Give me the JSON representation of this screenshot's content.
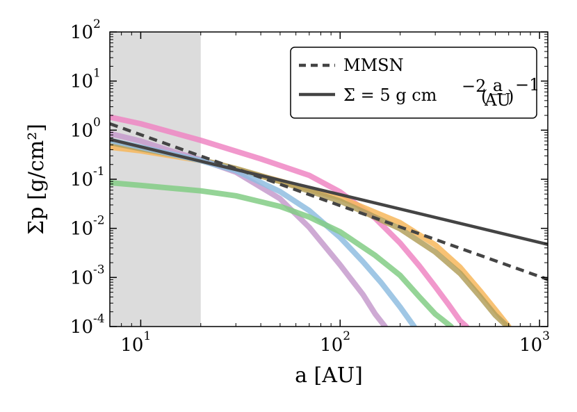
{
  "chart_data": {
    "type": "line",
    "title": "",
    "xlabel": "a [AU]",
    "ylabel": "Σp [g/cm²]",
    "xscale": "log",
    "yscale": "log",
    "xlim": [
      7,
      1100
    ],
    "ylim": [
      0.0001,
      100
    ],
    "x_ticks": [
      {
        "base": "10",
        "exp": "1",
        "value": 10
      },
      {
        "base": "10",
        "exp": "2",
        "value": 100
      },
      {
        "base": "10",
        "exp": "3",
        "value": 1000
      }
    ],
    "y_ticks": [
      {
        "base": "10",
        "exp": "-4",
        "value": 0.0001
      },
      {
        "base": "10",
        "exp": "-3",
        "value": 0.001
      },
      {
        "base": "10",
        "exp": "-2",
        "value": 0.01
      },
      {
        "base": "10",
        "exp": "-1",
        "value": 0.1
      },
      {
        "base": "10",
        "exp": "0",
        "value": 1
      },
      {
        "base": "10",
        "exp": "1",
        "value": 10
      },
      {
        "base": "10",
        "exp": "2",
        "value": 100
      }
    ],
    "shaded_region": {
      "x": [
        7,
        20
      ],
      "color": "#dcdcdc"
    },
    "legend": {
      "position": "top-right",
      "entries": [
        {
          "label": "MMSN",
          "style": "dashed",
          "color": "#444444"
        },
        {
          "label": "Σ = 5 g cm⁻² (a/AU)⁻¹",
          "style": "solid",
          "color": "#444444"
        }
      ]
    },
    "legend_parts": {
      "sigma_eq": "Σ = 5  g  cm",
      "exp_neg2": "−2",
      "frac_num": "a",
      "frac_den": "AU",
      "exp_neg1": "−1"
    },
    "series": [
      {
        "name": "MMSN",
        "style": "dashed",
        "color": "#444444",
        "x": [
          7,
          1100
        ],
        "y": [
          1.35,
          0.00091
        ]
      },
      {
        "name": "Σ = 5 g cm⁻² (a/AU)⁻¹",
        "style": "solid",
        "color": "#444444",
        "x": [
          7,
          1100
        ],
        "y": [
          0.65,
          0.0047
        ]
      },
      {
        "name": "pink",
        "style": "disk",
        "color": "#ef86c3",
        "x": [
          7,
          10,
          20,
          40,
          70,
          100,
          150,
          200,
          250,
          300,
          350,
          400,
          430
        ],
        "y": [
          1.85,
          1.35,
          0.62,
          0.26,
          0.12,
          0.055,
          0.016,
          0.005,
          0.0017,
          0.00065,
          0.00028,
          0.00013,
          0.0001
        ]
      },
      {
        "name": "orange",
        "style": "disk",
        "color": "#f7b75c",
        "x": [
          7,
          10,
          20,
          30,
          50,
          100,
          200,
          300,
          400,
          500,
          600,
          700
        ],
        "y": [
          0.45,
          0.38,
          0.24,
          0.16,
          0.092,
          0.042,
          0.013,
          0.0046,
          0.0016,
          0.00055,
          0.00022,
          0.0001
        ]
      },
      {
        "name": "olive",
        "style": "disk",
        "color": "#b3a05d",
        "x": [
          7,
          10,
          20,
          30,
          50,
          100,
          200,
          300,
          400,
          500,
          600,
          690
        ],
        "y": [
          0.56,
          0.42,
          0.25,
          0.165,
          0.09,
          0.036,
          0.0098,
          0.0033,
          0.0012,
          0.00042,
          0.00017,
          0.0001
        ]
      },
      {
        "name": "purple",
        "style": "disk",
        "color": "#c69bcc",
        "x": [
          7,
          10,
          15,
          20,
          30,
          50,
          70,
          100,
          130,
          150,
          168
        ],
        "y": [
          0.85,
          0.6,
          0.35,
          0.25,
          0.14,
          0.04,
          0.0105,
          0.0018,
          0.00045,
          0.00018,
          0.0001
        ]
      },
      {
        "name": "blue",
        "style": "disk",
        "color": "#8fbde0",
        "x": [
          7,
          10,
          20,
          30,
          50,
          70,
          100,
          130,
          160,
          200,
          235
        ],
        "y": [
          0.62,
          0.45,
          0.24,
          0.15,
          0.056,
          0.023,
          0.0065,
          0.0021,
          0.0008,
          0.00025,
          0.0001
        ]
      },
      {
        "name": "green",
        "style": "disk",
        "color": "#82cc85",
        "x": [
          7,
          10,
          20,
          30,
          50,
          70,
          100,
          150,
          200,
          250,
          300,
          360
        ],
        "y": [
          0.085,
          0.075,
          0.058,
          0.046,
          0.028,
          0.017,
          0.0085,
          0.0028,
          0.0011,
          0.0004,
          0.00018,
          0.0001
        ]
      }
    ],
    "colors": {
      "axis": "#000000",
      "shade": "#dcdcdc",
      "ref_lines": "#444444"
    }
  }
}
